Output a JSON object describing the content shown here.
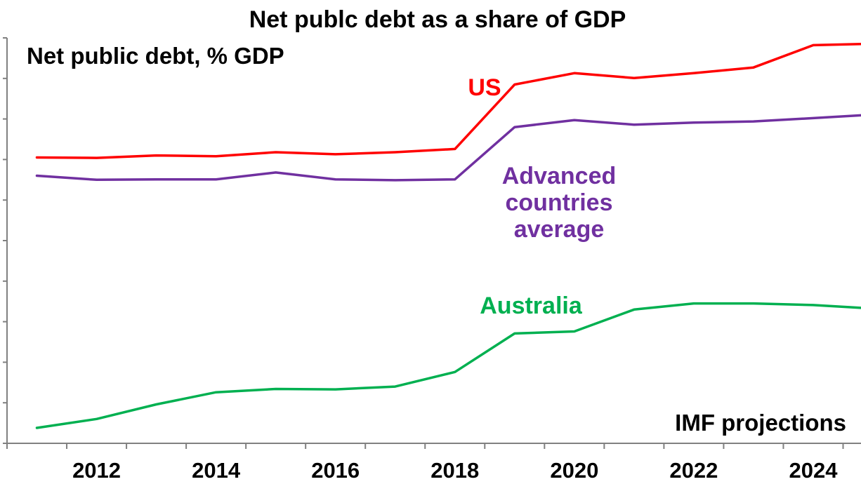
{
  "chart_data": {
    "type": "line",
    "title": "Net publc debt as a share of GDP",
    "subtitle": "Net public debt, % GDP",
    "note": "IMF projections",
    "x_ticks": [
      "2012",
      "2014",
      "2016",
      "2018",
      "2020",
      "2022",
      "2024"
    ],
    "x": [
      2011.5,
      2012.5,
      2013.5,
      2014.5,
      2015.5,
      2016.5,
      2017.5,
      2018.5,
      2019.5,
      2020.5,
      2021.5,
      2022.5,
      2023.5,
      2024.5,
      2025.3
    ],
    "xlim": [
      2011,
      2025.3
    ],
    "ylim": [
      0,
      100
    ],
    "grid": false,
    "series": [
      {
        "name": "US",
        "color": "#ff0000",
        "label_lines": [
          "US"
        ],
        "values": [
          70.5,
          70.4,
          71.0,
          70.8,
          71.8,
          71.3,
          71.8,
          72.6,
          88.5,
          91.3,
          90.1,
          91.3,
          92.7,
          98.2,
          98.5
        ]
      },
      {
        "name": "Advanced countries average",
        "color": "#7030a0",
        "label_lines": [
          "Advanced",
          "countries",
          "average"
        ],
        "values": [
          66.0,
          65.0,
          65.1,
          65.1,
          66.8,
          65.1,
          64.9,
          65.1,
          78.0,
          79.7,
          78.6,
          79.1,
          79.4,
          80.2,
          80.9
        ]
      },
      {
        "name": "Australia",
        "color": "#00b050",
        "label_lines": [
          "Australia"
        ],
        "values": [
          3.8,
          6.0,
          9.6,
          12.6,
          13.4,
          13.3,
          14.0,
          17.6,
          27.1,
          27.6,
          33.0,
          34.5,
          34.5,
          34.1,
          33.4
        ]
      }
    ]
  }
}
